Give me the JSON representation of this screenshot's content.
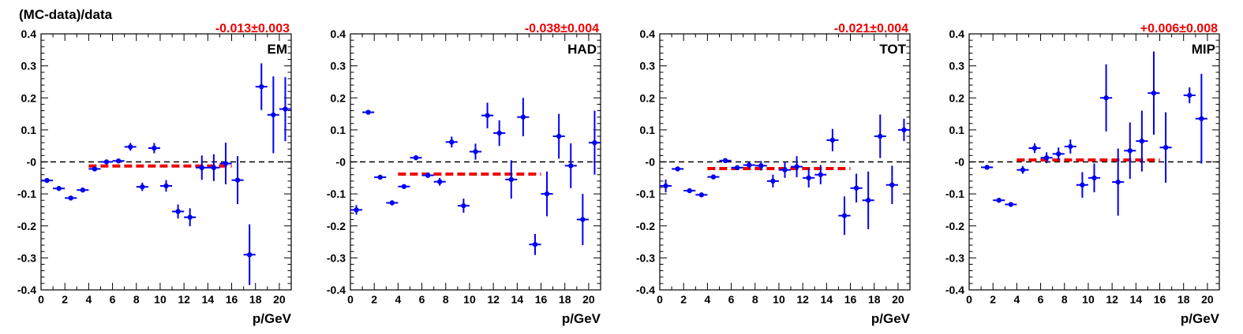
{
  "figure": {
    "ylabel": "(MC-data)/data"
  },
  "colors": {
    "points": "#0000ee",
    "fit": "#ee0000",
    "reference": "#000000",
    "fit_text": "#ee0000"
  },
  "chart_data": [
    {
      "type": "scatter",
      "panel_label": "EM",
      "fit_result": "-0.013±0.003",
      "xlabel": "p/GeV",
      "ylabel": "(MC-data)/data",
      "xlim": [
        0,
        21
      ],
      "ylim": [
        -0.4,
        0.4
      ],
      "x_ticks": [
        0,
        2,
        4,
        6,
        8,
        10,
        12,
        14,
        16,
        18,
        20
      ],
      "y_ticks": [
        -0.4,
        -0.3,
        -0.2,
        -0.1,
        0,
        0.1,
        0.2,
        0.3,
        0.4
      ],
      "y_tick_labels": [
        "-0.4",
        "-0.3",
        "-0.2",
        "-0.1",
        "-0",
        "0.1",
        "0.2",
        "0.3",
        "0.4"
      ],
      "reference_line": 0,
      "fit": {
        "value": -0.013,
        "x_range": [
          4,
          16
        ]
      },
      "points": [
        {
          "x": 0.5,
          "y": -0.058,
          "yerr": 0.006
        },
        {
          "x": 1.5,
          "y": -0.083,
          "yerr": 0.005
        },
        {
          "x": 2.5,
          "y": -0.113,
          "yerr": 0.005
        },
        {
          "x": 3.5,
          "y": -0.088,
          "yerr": 0.005
        },
        {
          "x": 4.5,
          "y": -0.022,
          "yerr": 0.006
        },
        {
          "x": 5.5,
          "y": 0.0,
          "yerr": 0.006
        },
        {
          "x": 6.5,
          "y": 0.003,
          "yerr": 0.007
        },
        {
          "x": 7.5,
          "y": 0.047,
          "yerr": 0.012
        },
        {
          "x": 8.5,
          "y": -0.078,
          "yerr": 0.013
        },
        {
          "x": 9.5,
          "y": 0.043,
          "yerr": 0.016
        },
        {
          "x": 10.5,
          "y": -0.075,
          "yerr": 0.018
        },
        {
          "x": 11.5,
          "y": -0.155,
          "yerr": 0.022
        },
        {
          "x": 12.5,
          "y": -0.173,
          "yerr": 0.028
        },
        {
          "x": 13.5,
          "y": -0.018,
          "yerr": 0.038
        },
        {
          "x": 14.5,
          "y": -0.018,
          "yerr": 0.042
        },
        {
          "x": 15.5,
          "y": -0.005,
          "yerr": 0.065
        },
        {
          "x": 16.5,
          "y": -0.057,
          "yerr": 0.075
        },
        {
          "x": 17.5,
          "y": -0.29,
          "yerr": 0.095
        },
        {
          "x": 18.5,
          "y": 0.235,
          "yerr": 0.073
        },
        {
          "x": 19.5,
          "y": 0.147,
          "yerr": 0.12
        },
        {
          "x": 20.5,
          "y": 0.165,
          "yerr": 0.1
        }
      ]
    },
    {
      "type": "scatter",
      "panel_label": "HAD",
      "fit_result": "-0.038±0.004",
      "xlabel": "p/GeV",
      "ylabel": "(MC-data)/data",
      "xlim": [
        0,
        21
      ],
      "ylim": [
        -0.4,
        0.4
      ],
      "x_ticks": [
        0,
        2,
        4,
        6,
        8,
        10,
        12,
        14,
        16,
        18,
        20
      ],
      "y_ticks": [
        -0.4,
        -0.3,
        -0.2,
        -0.1,
        0,
        0.1,
        0.2,
        0.3,
        0.4
      ],
      "y_tick_labels": [
        "-0.4",
        "-0.3",
        "-0.2",
        "-0.1",
        "-0",
        "0.1",
        "0.2",
        "0.3",
        "0.4"
      ],
      "reference_line": 0,
      "fit": {
        "value": -0.038,
        "x_range": [
          4,
          16
        ]
      },
      "points": [
        {
          "x": 0.5,
          "y": -0.15,
          "yerr": 0.015
        },
        {
          "x": 1.5,
          "y": 0.155,
          "yerr": 0.006
        },
        {
          "x": 2.5,
          "y": -0.048,
          "yerr": 0.006
        },
        {
          "x": 3.5,
          "y": -0.128,
          "yerr": 0.005
        },
        {
          "x": 4.5,
          "y": -0.077,
          "yerr": 0.006
        },
        {
          "x": 5.5,
          "y": 0.013,
          "yerr": 0.007
        },
        {
          "x": 6.5,
          "y": -0.042,
          "yerr": 0.008
        },
        {
          "x": 7.5,
          "y": -0.062,
          "yerr": 0.012
        },
        {
          "x": 8.5,
          "y": 0.062,
          "yerr": 0.017
        },
        {
          "x": 9.5,
          "y": -0.137,
          "yerr": 0.022
        },
        {
          "x": 10.5,
          "y": 0.032,
          "yerr": 0.025
        },
        {
          "x": 11.5,
          "y": 0.145,
          "yerr": 0.04
        },
        {
          "x": 12.5,
          "y": 0.09,
          "yerr": 0.04
        },
        {
          "x": 13.5,
          "y": -0.055,
          "yerr": 0.06
        },
        {
          "x": 14.5,
          "y": 0.14,
          "yerr": 0.06
        },
        {
          "x": 15.5,
          "y": -0.258,
          "yerr": 0.033
        },
        {
          "x": 16.5,
          "y": -0.1,
          "yerr": 0.07
        },
        {
          "x": 17.5,
          "y": 0.08,
          "yerr": 0.07
        },
        {
          "x": 18.5,
          "y": -0.012,
          "yerr": 0.07
        },
        {
          "x": 19.5,
          "y": -0.18,
          "yerr": 0.08
        },
        {
          "x": 20.5,
          "y": 0.06,
          "yerr": 0.1
        }
      ]
    },
    {
      "type": "scatter",
      "panel_label": "TOT",
      "fit_result": "-0.021±0.004",
      "xlabel": "p/GeV",
      "ylabel": "(MC-data)/data",
      "xlim": [
        0,
        21
      ],
      "ylim": [
        -0.4,
        0.4
      ],
      "x_ticks": [
        0,
        2,
        4,
        6,
        8,
        10,
        12,
        14,
        16,
        18,
        20
      ],
      "y_ticks": [
        -0.4,
        -0.3,
        -0.2,
        -0.1,
        0,
        0.1,
        0.2,
        0.3,
        0.4
      ],
      "y_tick_labels": [
        "-0.4",
        "-0.3",
        "-0.2",
        "-0.1",
        "-0",
        "0.1",
        "0.2",
        "0.3",
        "0.4"
      ],
      "reference_line": 0,
      "fit": {
        "value": -0.021,
        "x_range": [
          4,
          16
        ]
      },
      "points": [
        {
          "x": 0.5,
          "y": -0.075,
          "yerr": 0.02
        },
        {
          "x": 1.5,
          "y": -0.022,
          "yerr": 0.006
        },
        {
          "x": 2.5,
          "y": -0.09,
          "yerr": 0.005
        },
        {
          "x": 3.5,
          "y": -0.103,
          "yerr": 0.005
        },
        {
          "x": 4.5,
          "y": -0.047,
          "yerr": 0.006
        },
        {
          "x": 5.5,
          "y": 0.004,
          "yerr": 0.006
        },
        {
          "x": 6.5,
          "y": -0.018,
          "yerr": 0.007
        },
        {
          "x": 7.5,
          "y": -0.01,
          "yerr": 0.01
        },
        {
          "x": 8.5,
          "y": -0.012,
          "yerr": 0.015
        },
        {
          "x": 9.5,
          "y": -0.06,
          "yerr": 0.02
        },
        {
          "x": 10.5,
          "y": -0.025,
          "yerr": 0.025
        },
        {
          "x": 11.5,
          "y": -0.015,
          "yerr": 0.033
        },
        {
          "x": 12.5,
          "y": -0.05,
          "yerr": 0.03
        },
        {
          "x": 13.5,
          "y": -0.04,
          "yerr": 0.03
        },
        {
          "x": 14.5,
          "y": 0.068,
          "yerr": 0.035
        },
        {
          "x": 15.5,
          "y": -0.168,
          "yerr": 0.06
        },
        {
          "x": 16.5,
          "y": -0.082,
          "yerr": 0.045
        },
        {
          "x": 17.5,
          "y": -0.12,
          "yerr": 0.09
        },
        {
          "x": 18.5,
          "y": 0.08,
          "yerr": 0.068
        },
        {
          "x": 19.5,
          "y": -0.072,
          "yerr": 0.06
        },
        {
          "x": 20.5,
          "y": 0.1,
          "yerr": 0.035
        }
      ]
    },
    {
      "type": "scatter",
      "panel_label": "MIP",
      "fit_result": "+0.006±0.008",
      "xlabel": "p/GeV",
      "ylabel": "(MC-data)/data",
      "xlim": [
        0,
        21
      ],
      "ylim": [
        -0.4,
        0.4
      ],
      "x_ticks": [
        0,
        2,
        4,
        6,
        8,
        10,
        12,
        14,
        16,
        18,
        20
      ],
      "y_ticks": [
        -0.4,
        -0.3,
        -0.2,
        -0.1,
        0,
        0.1,
        0.2,
        0.3,
        0.4
      ],
      "y_tick_labels": [
        "-0.4",
        "-0.3",
        "-0.2",
        "-0.1",
        "-0",
        "0.1",
        "0.2",
        "0.3",
        "0.4"
      ],
      "reference_line": 0,
      "fit": {
        "value": 0.006,
        "x_range": [
          4,
          16
        ]
      },
      "points": [
        {
          "x": 1.5,
          "y": -0.017,
          "yerr": 0.006
        },
        {
          "x": 2.5,
          "y": -0.12,
          "yerr": 0.005
        },
        {
          "x": 3.5,
          "y": -0.133,
          "yerr": 0.007
        },
        {
          "x": 4.5,
          "y": -0.025,
          "yerr": 0.012
        },
        {
          "x": 5.5,
          "y": 0.043,
          "yerr": 0.015
        },
        {
          "x": 6.5,
          "y": 0.013,
          "yerr": 0.017
        },
        {
          "x": 7.5,
          "y": 0.025,
          "yerr": 0.02
        },
        {
          "x": 8.5,
          "y": 0.048,
          "yerr": 0.022
        },
        {
          "x": 9.5,
          "y": -0.072,
          "yerr": 0.04
        },
        {
          "x": 10.5,
          "y": -0.05,
          "yerr": 0.045
        },
        {
          "x": 11.5,
          "y": 0.2,
          "yerr": 0.105
        },
        {
          "x": 12.5,
          "y": -0.063,
          "yerr": 0.105
        },
        {
          "x": 13.5,
          "y": 0.035,
          "yerr": 0.088
        },
        {
          "x": 14.5,
          "y": 0.065,
          "yerr": 0.095
        },
        {
          "x": 15.5,
          "y": 0.215,
          "yerr": 0.13
        },
        {
          "x": 16.5,
          "y": 0.045,
          "yerr": 0.11
        },
        {
          "x": 18.5,
          "y": 0.208,
          "yerr": 0.025
        },
        {
          "x": 19.5,
          "y": 0.135,
          "yerr": 0.14
        }
      ]
    }
  ]
}
